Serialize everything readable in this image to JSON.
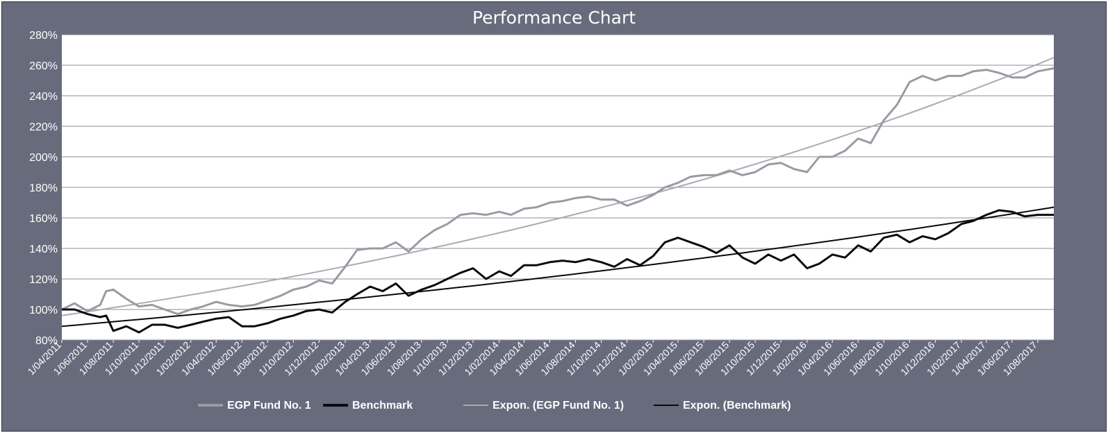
{
  "chart_data": {
    "type": "line",
    "title": "Performance Chart",
    "xlabel": "",
    "ylabel": "",
    "ylim": [
      0.8,
      2.8
    ],
    "xlim": [
      "2011-04-01",
      "2017-09-08"
    ],
    "y_ticks": [
      "80%",
      "100%",
      "120%",
      "140%",
      "160%",
      "180%",
      "200%",
      "220%",
      "240%",
      "260%",
      "280%"
    ],
    "x_ticks": [
      "1/04/2011",
      "1/06/2011",
      "1/08/2011",
      "1/10/2011",
      "1/12/2011",
      "1/02/2012",
      "1/04/2012",
      "1/06/2012",
      "1/08/2012",
      "1/10/2012",
      "1/12/2012",
      "1/02/2013",
      "1/04/2013",
      "1/06/2013",
      "1/08/2013",
      "1/10/2013",
      "1/12/2013",
      "1/02/2014",
      "1/04/2014",
      "1/06/2014",
      "1/08/2014",
      "1/10/2014",
      "1/12/2014",
      "1/02/2015",
      "1/04/2015",
      "1/06/2015",
      "1/08/2015",
      "1/10/2015",
      "1/12/2015",
      "1/02/2016",
      "1/04/2016",
      "1/06/2016",
      "1/08/2016",
      "1/10/2016",
      "1/12/2016",
      "1/02/2017",
      "1/04/2017",
      "1/06/2017",
      "1/08/2017"
    ],
    "grid": true,
    "legend_position": "bottom",
    "series": [
      {
        "name": "EGP Fund No. 1",
        "color": "#999ba3",
        "x": [
          "2011-04-01",
          "2011-05-01",
          "2011-06-01",
          "2011-07-01",
          "2011-07-15",
          "2011-08-01",
          "2011-09-01",
          "2011-10-01",
          "2011-11-01",
          "2011-12-01",
          "2012-01-01",
          "2012-02-01",
          "2012-03-01",
          "2012-04-01",
          "2012-05-01",
          "2012-06-01",
          "2012-07-01",
          "2012-08-01",
          "2012-09-01",
          "2012-10-01",
          "2012-11-01",
          "2012-12-01",
          "2013-01-01",
          "2013-02-01",
          "2013-03-01",
          "2013-04-01",
          "2013-05-01",
          "2013-06-01",
          "2013-07-01",
          "2013-08-01",
          "2013-09-01",
          "2013-10-01",
          "2013-11-01",
          "2013-12-01",
          "2014-01-01",
          "2014-02-01",
          "2014-03-01",
          "2014-04-01",
          "2014-05-01",
          "2014-06-01",
          "2014-07-01",
          "2014-08-01",
          "2014-09-01",
          "2014-10-01",
          "2014-11-01",
          "2014-12-01",
          "2015-01-01",
          "2015-02-01",
          "2015-03-01",
          "2015-04-01",
          "2015-05-01",
          "2015-06-01",
          "2015-07-01",
          "2015-08-01",
          "2015-09-01",
          "2015-10-01",
          "2015-11-01",
          "2015-12-01",
          "2016-01-01",
          "2016-02-01",
          "2016-03-01",
          "2016-04-01",
          "2016-05-01",
          "2016-06-01",
          "2016-07-01",
          "2016-08-01",
          "2016-09-01",
          "2016-10-01",
          "2016-11-01",
          "2016-12-01",
          "2017-01-01",
          "2017-02-01",
          "2017-03-01",
          "2017-04-01",
          "2017-05-01",
          "2017-06-01",
          "2017-07-01",
          "2017-08-01",
          "2017-09-08"
        ],
        "values": [
          1.0,
          1.04,
          0.99,
          1.03,
          1.12,
          1.13,
          1.07,
          1.02,
          1.03,
          1.0,
          0.97,
          1.0,
          1.02,
          1.05,
          1.03,
          1.02,
          1.03,
          1.06,
          1.09,
          1.13,
          1.15,
          1.19,
          1.17,
          1.28,
          1.39,
          1.4,
          1.4,
          1.44,
          1.38,
          1.46,
          1.52,
          1.56,
          1.62,
          1.63,
          1.62,
          1.64,
          1.62,
          1.66,
          1.67,
          1.7,
          1.71,
          1.73,
          1.74,
          1.72,
          1.72,
          1.68,
          1.71,
          1.75,
          1.8,
          1.83,
          1.87,
          1.88,
          1.88,
          1.91,
          1.88,
          1.9,
          1.95,
          1.96,
          1.92,
          1.9,
          2.0,
          2.0,
          2.04,
          2.12,
          2.09,
          2.24,
          2.34,
          2.49,
          2.53,
          2.5,
          2.53,
          2.53,
          2.56,
          2.57,
          2.55,
          2.52,
          2.52,
          2.56,
          2.58
        ]
      },
      {
        "name": "Benchmark",
        "color": "#0a0a0a",
        "x": [
          "2011-04-01",
          "2011-05-01",
          "2011-06-01",
          "2011-07-01",
          "2011-07-15",
          "2011-08-01",
          "2011-09-01",
          "2011-10-01",
          "2011-11-01",
          "2011-12-01",
          "2012-01-01",
          "2012-02-01",
          "2012-03-01",
          "2012-04-01",
          "2012-05-01",
          "2012-06-01",
          "2012-07-01",
          "2012-08-01",
          "2012-09-01",
          "2012-10-01",
          "2012-11-01",
          "2012-12-01",
          "2013-01-01",
          "2013-02-01",
          "2013-03-01",
          "2013-04-01",
          "2013-05-01",
          "2013-06-01",
          "2013-07-01",
          "2013-08-01",
          "2013-09-01",
          "2013-10-01",
          "2013-11-01",
          "2013-12-01",
          "2014-01-01",
          "2014-02-01",
          "2014-03-01",
          "2014-04-01",
          "2014-05-01",
          "2014-06-01",
          "2014-07-01",
          "2014-08-01",
          "2014-09-01",
          "2014-10-01",
          "2014-11-01",
          "2014-12-01",
          "2015-01-01",
          "2015-02-01",
          "2015-03-01",
          "2015-04-01",
          "2015-05-01",
          "2015-06-01",
          "2015-07-01",
          "2015-08-01",
          "2015-09-01",
          "2015-10-01",
          "2015-11-01",
          "2015-12-01",
          "2016-01-01",
          "2016-02-01",
          "2016-03-01",
          "2016-04-01",
          "2016-05-01",
          "2016-06-01",
          "2016-07-01",
          "2016-08-01",
          "2016-09-01",
          "2016-10-01",
          "2016-11-01",
          "2016-12-01",
          "2017-01-01",
          "2017-02-01",
          "2017-03-01",
          "2017-04-01",
          "2017-05-01",
          "2017-06-01",
          "2017-07-01",
          "2017-08-01",
          "2017-09-08"
        ],
        "values": [
          1.0,
          1.0,
          0.97,
          0.95,
          0.96,
          0.86,
          0.89,
          0.85,
          0.9,
          0.9,
          0.88,
          0.9,
          0.92,
          0.94,
          0.95,
          0.89,
          0.89,
          0.91,
          0.94,
          0.96,
          0.99,
          1.0,
          0.98,
          1.05,
          1.1,
          1.15,
          1.12,
          1.17,
          1.09,
          1.13,
          1.16,
          1.2,
          1.24,
          1.27,
          1.2,
          1.25,
          1.22,
          1.29,
          1.29,
          1.31,
          1.32,
          1.31,
          1.33,
          1.31,
          1.28,
          1.33,
          1.29,
          1.35,
          1.44,
          1.47,
          1.44,
          1.41,
          1.37,
          1.42,
          1.34,
          1.3,
          1.36,
          1.32,
          1.36,
          1.27,
          1.3,
          1.36,
          1.34,
          1.42,
          1.38,
          1.47,
          1.49,
          1.44,
          1.48,
          1.46,
          1.5,
          1.56,
          1.58,
          1.62,
          1.65,
          1.64,
          1.61,
          1.62,
          1.62
        ]
      },
      {
        "name": "Expon. (EGP Fund No. 1)",
        "color": "#a9abb2",
        "trend": "exponential",
        "x": [
          "2011-04-01",
          "2017-09-08"
        ],
        "values": [
          0.96,
          2.65
        ]
      },
      {
        "name": "Expon. (Benchmark)",
        "color": "#0a0a0a",
        "trend": "exponential",
        "x": [
          "2011-04-01",
          "2017-09-08"
        ],
        "values": [
          0.89,
          1.67
        ]
      }
    ]
  }
}
